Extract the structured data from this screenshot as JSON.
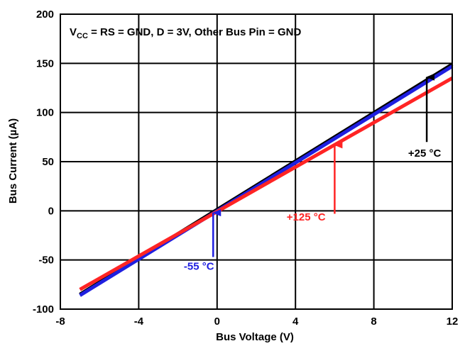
{
  "chart_data": {
    "type": "line",
    "condition": {
      "v": "V",
      "cc": "CC",
      "rest": " = RS = GND, D = 3V, Other Bus Pin = GND"
    },
    "xlabel": "Bus Voltage (V)",
    "ylabel": "Bus Current (µA)",
    "xlim": [
      -8,
      12
    ],
    "ylim": [
      -100,
      200
    ],
    "x_ticks": [
      "-8",
      "-4",
      "0",
      "4",
      "8",
      "12"
    ],
    "y_ticks": [
      "-100",
      "-50",
      "0",
      "50",
      "100",
      "150",
      "200"
    ],
    "grid": true,
    "series": [
      {
        "name": "+25 °C",
        "color": "#000000",
        "x": [
          -7,
          12
        ],
        "y": [
          -85,
          149
        ]
      },
      {
        "name": "-55 °C",
        "color": "#1f1fe0",
        "x": [
          -7,
          12
        ],
        "y": [
          -86,
          147
        ]
      },
      {
        "name": "+125 °C",
        "color": "#ff2424",
        "x": [
          -7,
          12
        ],
        "y": [
          -80,
          135
        ]
      }
    ],
    "annotations": [
      {
        "text": "+25 °C",
        "color": "#000000",
        "label_x": 9.75,
        "label_y": 55,
        "arrow_x": 10.7,
        "arrow_from_y": 70,
        "arrow_to_y": 136
      },
      {
        "text": "+125 °C",
        "color": "#ff2424",
        "label_x": 3.55,
        "label_y": -10,
        "arrow_x": 6.0,
        "arrow_from_y": -3,
        "arrow_to_y": 67
      },
      {
        "text": "-55 °C",
        "color": "#1f1fe0",
        "label_x": -1.7,
        "label_y": -60,
        "arrow_x": -0.2,
        "arrow_from_y": -47,
        "arrow_to_y": -2
      }
    ]
  }
}
